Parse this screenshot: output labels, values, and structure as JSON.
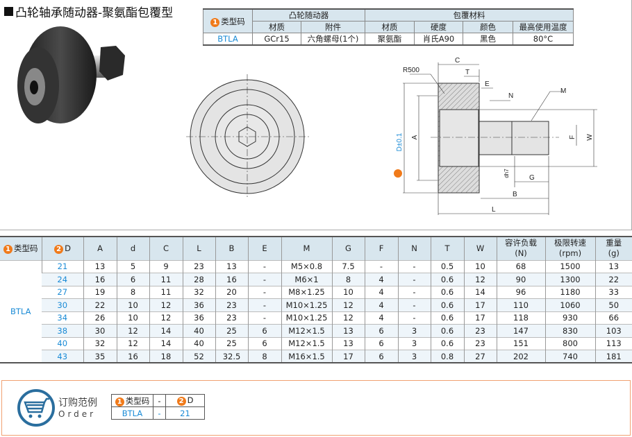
{
  "title": "凸轮轴承随动器-聚氨酯包覆型",
  "spec": {
    "type_code": "类型码",
    "cam_follower": "凸轮随动器",
    "coating": "包覆材料",
    "material": "材质",
    "accessory": "附件",
    "material2": "材质",
    "hardness": "硬度",
    "color": "颜色",
    "max_temp": "最高使用温度",
    "row": {
      "type": "BTLA",
      "material": "GCr15",
      "accessory": "六角螺母(1个)",
      "coat_material": "聚氨酯",
      "hardness": "肖氏A90",
      "color": "黑色",
      "max_temp": "80°C"
    }
  },
  "drawing": {
    "C": "C",
    "T": "T",
    "E": "E",
    "N": "N",
    "M": "M",
    "W": "W",
    "F": "F",
    "G": "G",
    "B": "B",
    "L": "L",
    "A": "A",
    "R": "R500",
    "d": "dh7",
    "D": "D±0.1",
    "D_num": "2"
  },
  "table": {
    "headers": [
      "类型码",
      "D",
      "A",
      "d",
      "C",
      "L",
      "B",
      "E",
      "M",
      "G",
      "F",
      "N",
      "T",
      "W",
      "容许负载",
      "极限转速",
      "重量"
    ],
    "header_units": {
      "load": "(N)",
      "speed": "(rpm)",
      "weight": "(g)"
    },
    "type": "BTLA",
    "rows": [
      [
        "21",
        "13",
        "5",
        "9",
        "23",
        "13",
        "-",
        "M5×0.8",
        "7.5",
        "-",
        "-",
        "0.5",
        "10",
        "68",
        "1500",
        "13"
      ],
      [
        "24",
        "16",
        "6",
        "11",
        "28",
        "16",
        "-",
        "M6×1",
        "8",
        "4",
        "-",
        "0.6",
        "12",
        "90",
        "1300",
        "22"
      ],
      [
        "27",
        "19",
        "8",
        "11",
        "32",
        "20",
        "-",
        "M8×1.25",
        "10",
        "4",
        "-",
        "0.6",
        "14",
        "96",
        "1180",
        "33"
      ],
      [
        "30",
        "22",
        "10",
        "12",
        "36",
        "23",
        "-",
        "M10×1.25",
        "12",
        "4",
        "-",
        "0.6",
        "17",
        "110",
        "1060",
        "50"
      ],
      [
        "34",
        "26",
        "10",
        "12",
        "36",
        "23",
        "-",
        "M10×1.25",
        "12",
        "4",
        "-",
        "0.6",
        "17",
        "118",
        "930",
        "66"
      ],
      [
        "38",
        "30",
        "12",
        "14",
        "40",
        "25",
        "6",
        "M12×1.5",
        "13",
        "6",
        "3",
        "0.6",
        "23",
        "147",
        "830",
        "103"
      ],
      [
        "40",
        "32",
        "12",
        "14",
        "40",
        "25",
        "6",
        "M12×1.5",
        "13",
        "6",
        "3",
        "0.6",
        "23",
        "151",
        "800",
        "113"
      ],
      [
        "43",
        "35",
        "16",
        "18",
        "52",
        "32.5",
        "8",
        "M16×1.5",
        "17",
        "6",
        "3",
        "0.8",
        "27",
        "202",
        "740",
        "181"
      ]
    ]
  },
  "order": {
    "label_cn": "订购范例",
    "label_en": "Order",
    "type_code": "类型码",
    "dash": "-",
    "D": "D",
    "type": "BTLA",
    "value": "21",
    "num1": "1",
    "num2": "2"
  },
  "colors": {
    "accent": "#f07a1a",
    "blue": "#1a8bd6",
    "header_bg": "#d8e6ee",
    "order_border": "#f0a070"
  }
}
